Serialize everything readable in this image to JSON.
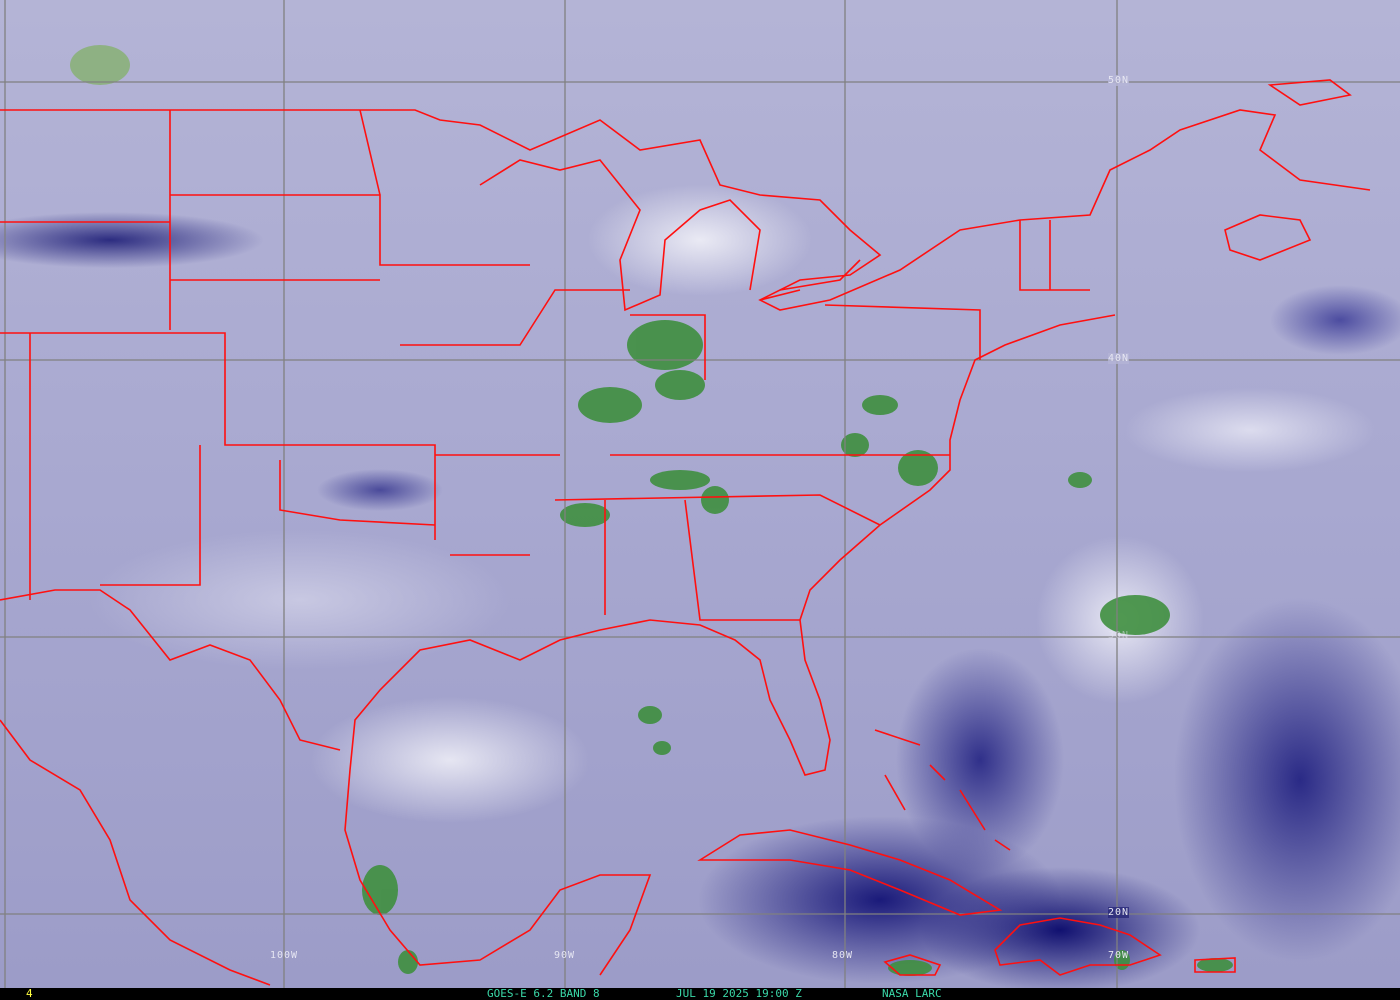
{
  "footer": {
    "frame_number": "4",
    "satellite_band": "GOES-E 6.2 BAND 8",
    "timestamp": "JUL 19 2025 19:00 Z",
    "credit": "NASA LARC"
  },
  "grid_labels": {
    "lat": [
      "50N",
      "40N",
      "30N",
      "20N"
    ],
    "lon": [
      "100W",
      "90W",
      "80W",
      "70W"
    ]
  },
  "colors": {
    "borders": "#ff1010",
    "grid": "#808080",
    "footer_text": "#3ad8a8",
    "frame_number": "#ffff40",
    "moist_cloud": "#3a8a3a",
    "dry_air": "#1a1a7a"
  }
}
